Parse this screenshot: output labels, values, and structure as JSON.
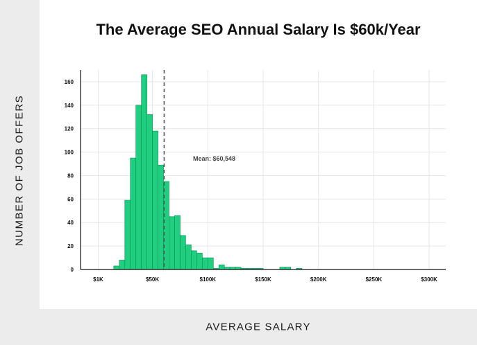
{
  "chart_data": {
    "type": "bar",
    "title": "The Average SEO Annual Salary Is $60k/Year",
    "xlabel": "AVERAGE SALARY",
    "ylabel": "NUMBER OF JOB OFFERS",
    "x_ticks": [
      {
        "value": 1000,
        "label": "$1K"
      },
      {
        "value": 50000,
        "label": "$50K"
      },
      {
        "value": 100000,
        "label": "$100K"
      },
      {
        "value": 150000,
        "label": "$150K"
      },
      {
        "value": 200000,
        "label": "$200K"
      },
      {
        "value": 250000,
        "label": "$250K"
      },
      {
        "value": 300000,
        "label": "$300K"
      }
    ],
    "y_ticks": [
      0,
      20,
      40,
      60,
      80,
      100,
      120,
      140,
      160
    ],
    "xlim": [
      -15000,
      315000
    ],
    "ylim": [
      0,
      170
    ],
    "bin_width": 5000,
    "bins": [
      {
        "start": 15000,
        "count": 3
      },
      {
        "start": 20000,
        "count": 8
      },
      {
        "start": 25000,
        "count": 59
      },
      {
        "start": 30000,
        "count": 95
      },
      {
        "start": 35000,
        "count": 140
      },
      {
        "start": 40000,
        "count": 166
      },
      {
        "start": 45000,
        "count": 132
      },
      {
        "start": 50000,
        "count": 118
      },
      {
        "start": 55000,
        "count": 89
      },
      {
        "start": 60000,
        "count": 75
      },
      {
        "start": 65000,
        "count": 45
      },
      {
        "start": 70000,
        "count": 46
      },
      {
        "start": 75000,
        "count": 29
      },
      {
        "start": 80000,
        "count": 21
      },
      {
        "start": 85000,
        "count": 16
      },
      {
        "start": 90000,
        "count": 14
      },
      {
        "start": 95000,
        "count": 10
      },
      {
        "start": 100000,
        "count": 10
      },
      {
        "start": 105000,
        "count": 1
      },
      {
        "start": 110000,
        "count": 4
      },
      {
        "start": 115000,
        "count": 2
      },
      {
        "start": 120000,
        "count": 2
      },
      {
        "start": 125000,
        "count": 2
      },
      {
        "start": 130000,
        "count": 1
      },
      {
        "start": 135000,
        "count": 1
      },
      {
        "start": 140000,
        "count": 1
      },
      {
        "start": 145000,
        "count": 1
      },
      {
        "start": 165000,
        "count": 2
      },
      {
        "start": 170000,
        "count": 2
      },
      {
        "start": 180000,
        "count": 1
      }
    ],
    "mean": {
      "value": 60548,
      "label": "Mean: $60,548"
    },
    "grid": true,
    "colors": {
      "bar": "#1fcf7f",
      "bar_stroke": "#0f8f55",
      "mean_line": "#555555",
      "grid": "#e6e6e6",
      "axis": "#111111"
    }
  }
}
